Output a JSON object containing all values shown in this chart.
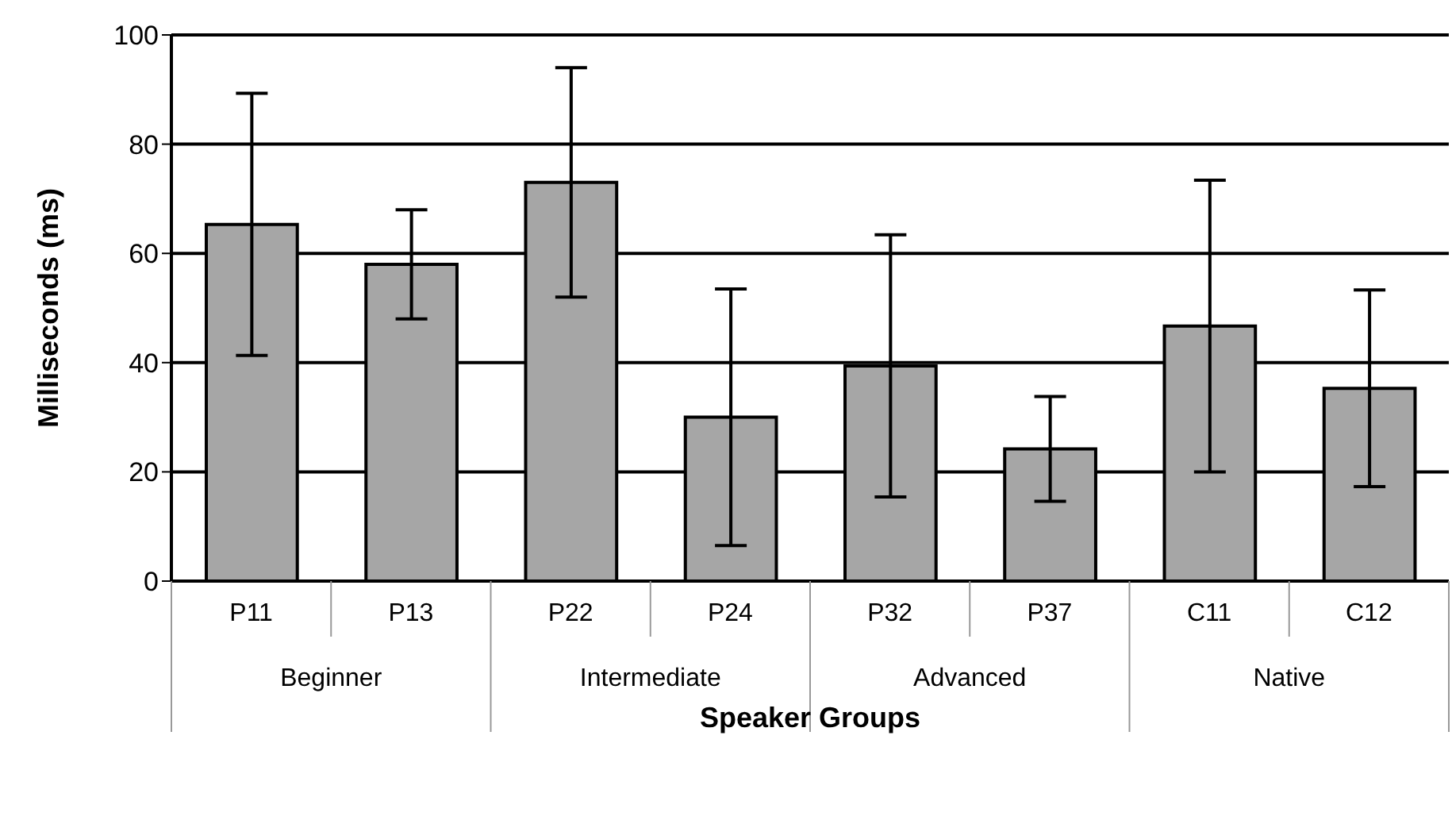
{
  "chart_data": {
    "type": "bar",
    "xlabel": "Speaker Groups",
    "ylabel": "Milliseconds (ms)",
    "categories": [
      "P11",
      "P13",
      "P22",
      "P24",
      "P32",
      "P37",
      "C11",
      "C12"
    ],
    "values": [
      65.3,
      58,
      73,
      30,
      39.4,
      24.2,
      46.7,
      35.3
    ],
    "errors": [
      24,
      10,
      21,
      23.5,
      24,
      9.6,
      26.7,
      18
    ],
    "color": "#a6a6a6",
    "annotations": [
      "Beginner",
      "Intermediate",
      "Advanced",
      "Native"
    ],
    "ylim": [
      0,
      100
    ],
    "yticks": [
      0,
      20,
      40,
      60,
      80,
      100
    ],
    "grid": "y",
    "legend": false
  }
}
